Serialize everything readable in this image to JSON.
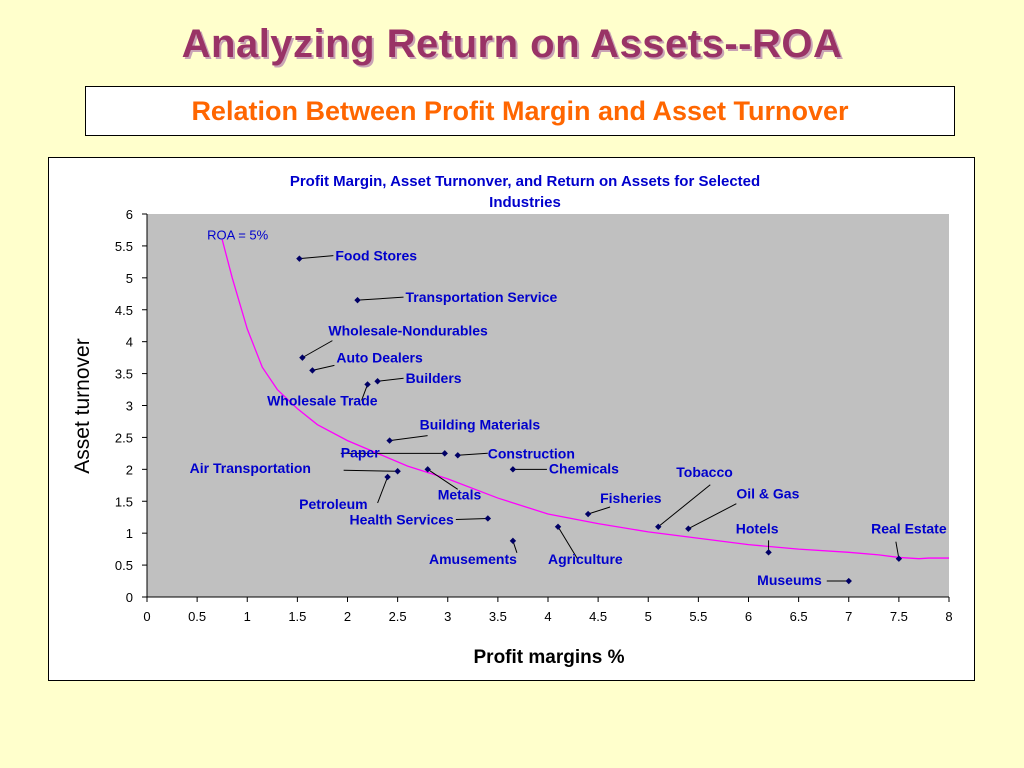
{
  "slide": {
    "title": "Analyzing Return on Assets--ROA",
    "subtitle": "Relation Between Profit Margin and Asset Turnover"
  },
  "colors": {
    "title": "#993366",
    "subtitle": "#ff6600",
    "chart_title": "#0000cc",
    "labels": "#0000cc",
    "curve": "#ff00ff",
    "points": "#000066",
    "plot_bg": "#c0c0c0",
    "slide_bg": "#ffffcc"
  },
  "chart_data": {
    "type": "scatter",
    "title_lines": [
      "Profit Margin, Asset Turnonver, and Return on Assets for Selected",
      "Industries"
    ],
    "xlabel": "Profit margins %",
    "ylabel": "Asset turnover",
    "xlim": [
      0,
      8
    ],
    "ylim": [
      0,
      6
    ],
    "x_ticks": [
      "0",
      "0.5",
      "1",
      "1.5",
      "2",
      "2.5",
      "3",
      "3.5",
      "4",
      "4.5",
      "5",
      "5.5",
      "6",
      "6.5",
      "7",
      "7.5",
      "8"
    ],
    "y_ticks": [
      "0",
      "0.5",
      "1",
      "1.5",
      "2",
      "2.5",
      "3",
      "3.5",
      "4",
      "4.5",
      "5",
      "5.5",
      "6"
    ],
    "grid": false,
    "curve": {
      "label": "ROA = 5%",
      "x": [
        0.75,
        0.85,
        1,
        1.15,
        1.3,
        1.5,
        1.7,
        2,
        2.3,
        2.6,
        3,
        3.5,
        4,
        4.5,
        5,
        5.5,
        6,
        6.5,
        7,
        7.3,
        7.5,
        7.7,
        7.8,
        8
      ],
      "y": [
        5.6,
        5.0,
        4.2,
        3.6,
        3.25,
        2.95,
        2.7,
        2.45,
        2.25,
        2.05,
        1.85,
        1.55,
        1.3,
        1.15,
        1.02,
        0.92,
        0.82,
        0.75,
        0.7,
        0.66,
        0.62,
        0.6,
        0.61,
        0.61
      ]
    },
    "points": [
      {
        "label": "Food Stores",
        "x": 1.52,
        "y": 5.3
      },
      {
        "label": "Transportation Service",
        "x": 2.1,
        "y": 4.65
      },
      {
        "label": "Wholesale-Nondurables",
        "x": 1.55,
        "y": 3.75
      },
      {
        "label": "Auto Dealers",
        "x": 1.65,
        "y": 3.55
      },
      {
        "label": "Builders",
        "x": 2.3,
        "y": 3.38
      },
      {
        "label": "Wholesale Trade",
        "x": 2.2,
        "y": 3.33
      },
      {
        "label": "Building Materials",
        "x": 2.42,
        "y": 2.45
      },
      {
        "label": "Paper",
        "x": 2.97,
        "y": 2.25
      },
      {
        "label": "Construction",
        "x": 3.1,
        "y": 2.22
      },
      {
        "label": "Air Transportation",
        "x": 2.5,
        "y": 1.97
      },
      {
        "label": "Metals",
        "x": 2.8,
        "y": 2.0
      },
      {
        "label": "Chemicals",
        "x": 3.65,
        "y": 2.0
      },
      {
        "label": "Petroleum",
        "x": 2.4,
        "y": 1.88
      },
      {
        "label": "Health Services",
        "x": 3.4,
        "y": 1.23
      },
      {
        "label": "Amusements",
        "x": 3.65,
        "y": 0.88
      },
      {
        "label": "Agriculture",
        "x": 4.1,
        "y": 1.1
      },
      {
        "label": "Fisheries",
        "x": 4.4,
        "y": 1.3
      },
      {
        "label": "Tobacco",
        "x": 5.1,
        "y": 1.1
      },
      {
        "label": "Oil & Gas",
        "x": 5.4,
        "y": 1.07
      },
      {
        "label": "Hotels",
        "x": 6.2,
        "y": 0.7
      },
      {
        "label": "Real Estate",
        "x": 7.5,
        "y": 0.6
      },
      {
        "label": "Museums",
        "x": 7.0,
        "y": 0.25
      }
    ]
  }
}
